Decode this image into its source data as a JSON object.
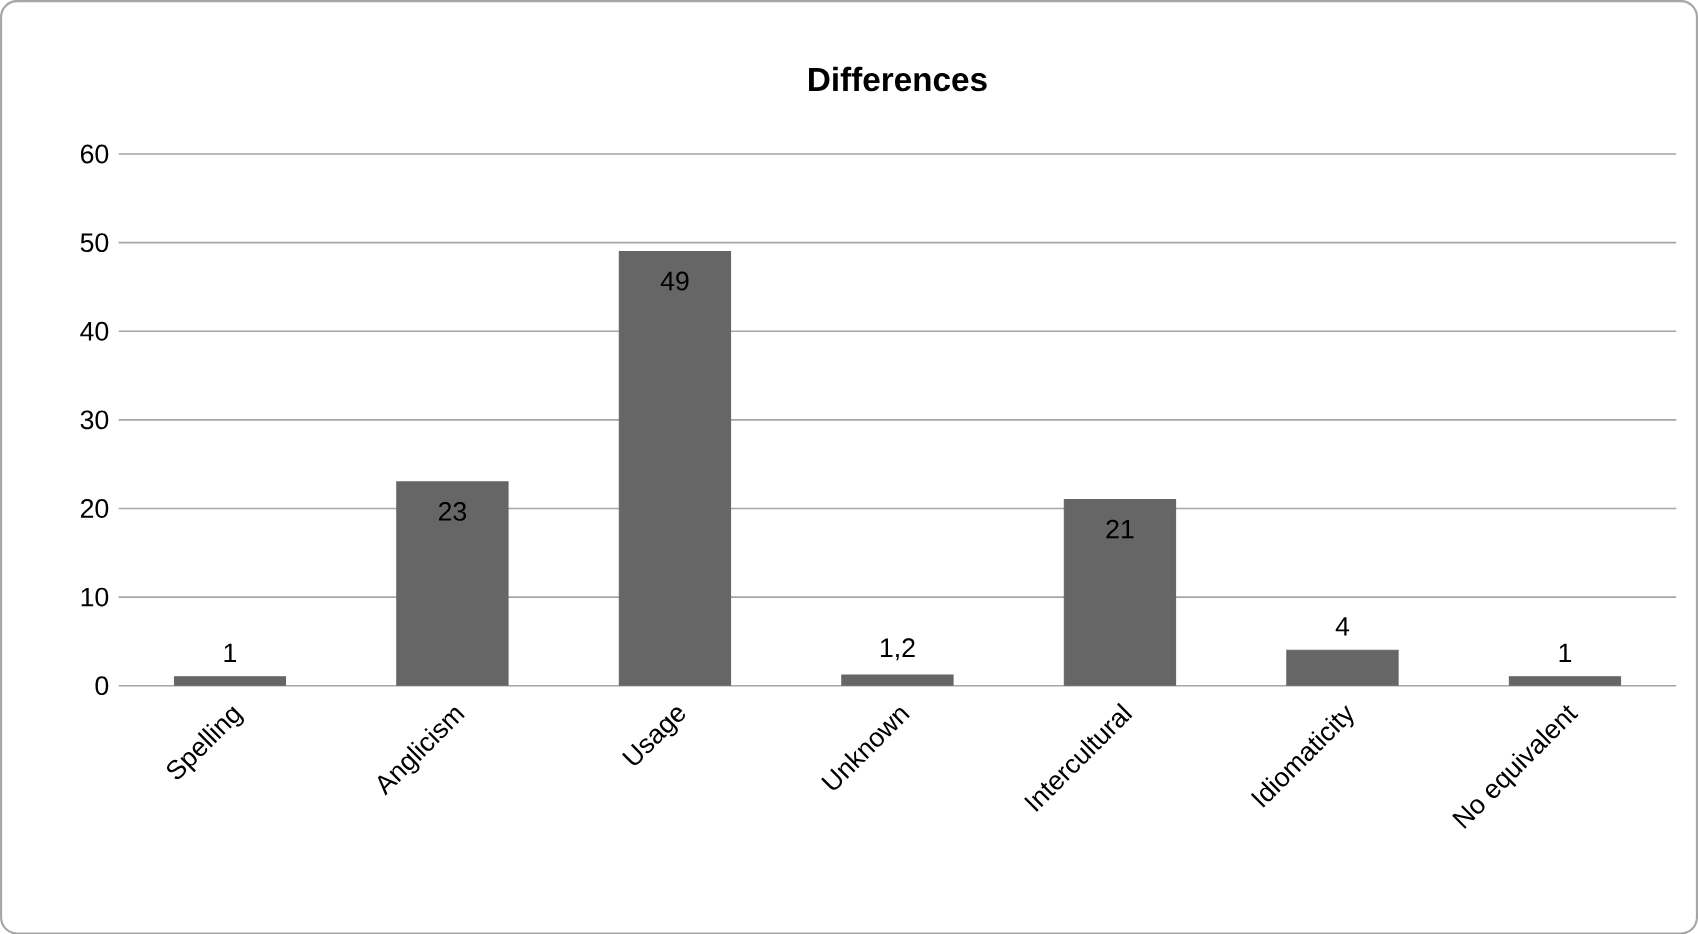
{
  "chart_data": {
    "type": "bar",
    "title": "Differences",
    "categories": [
      "Spelling",
      "Anglicism",
      "Usage",
      "Unknown",
      "Intercultural",
      "Idiomaticity",
      "No equivalent"
    ],
    "values": [
      1,
      23,
      49,
      1.2,
      21,
      4,
      1
    ],
    "value_labels": [
      "1",
      "23",
      "49",
      "1,2",
      "21",
      "4",
      "1"
    ],
    "color": "#666666",
    "ylim": [
      0,
      60
    ],
    "yticks": [
      0,
      10,
      20,
      30,
      40,
      50,
      60
    ],
    "grid": "y"
  }
}
